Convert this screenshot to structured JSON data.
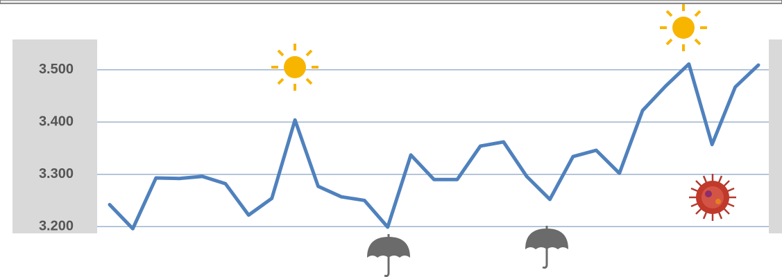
{
  "chart_data": {
    "type": "line",
    "series": [
      {
        "color": "#4f81bd",
        "values": [
          3.242,
          3.196,
          3.293,
          3.292,
          3.296,
          3.282,
          3.222,
          3.254,
          3.404,
          3.277,
          3.257,
          3.25,
          3.199,
          3.337,
          3.29,
          3.29,
          3.354,
          3.362,
          3.296,
          3.252,
          3.334,
          3.346,
          3.302,
          3.422,
          3.469,
          3.511,
          3.357,
          3.467,
          3.509
        ]
      }
    ],
    "ylim": [
      3.187,
      3.558
    ],
    "yticks": [
      {
        "value": 3.2,
        "label": "3.200"
      },
      {
        "value": 3.3,
        "label": "3.300"
      },
      {
        "value": 3.4,
        "label": "3.400"
      },
      {
        "value": 3.5,
        "label": "3.500"
      }
    ],
    "grid": true
  }
}
